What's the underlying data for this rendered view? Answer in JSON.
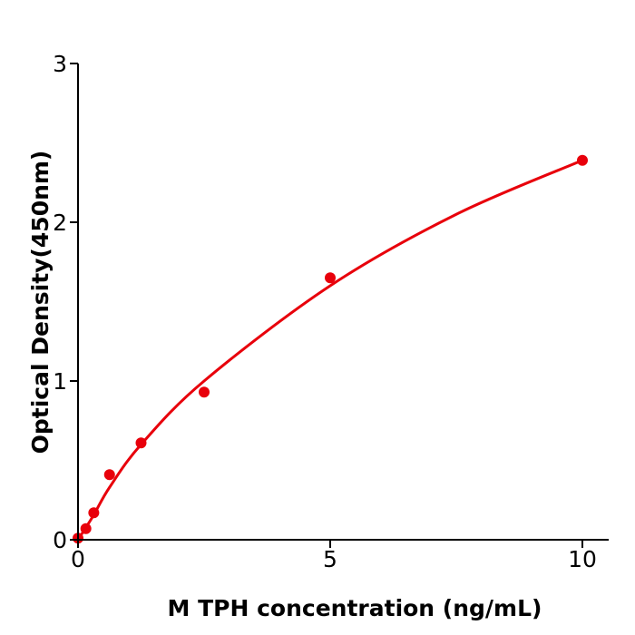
{
  "chart_data": {
    "type": "scatter",
    "title": "",
    "xlabel": "M  TPH concentration (ng/mL)",
    "ylabel": "Optical Density(450nm)",
    "xlim": [
      0,
      10.5
    ],
    "ylim": [
      0,
      3
    ],
    "xticks": [
      "0",
      "5",
      "10"
    ],
    "yticks": [
      "0",
      "1",
      "2",
      "3"
    ],
    "grid": false,
    "color": "#e8000b",
    "points": {
      "x": [
        0,
        0.156,
        0.3125,
        0.625,
        1.25,
        2.5,
        5,
        10
      ],
      "y": [
        0.01,
        0.07,
        0.17,
        0.41,
        0.61,
        0.93,
        1.65,
        2.39
      ]
    },
    "fit_curve": {
      "x": [
        0,
        0.3,
        0.625,
        1.25,
        2.5,
        5,
        7.5,
        10
      ],
      "y": [
        0,
        0.15,
        0.33,
        0.6,
        1.0,
        1.6,
        2.05,
        2.39
      ]
    }
  }
}
